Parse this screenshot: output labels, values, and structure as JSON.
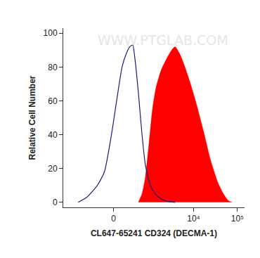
{
  "chart_data": {
    "type": "area",
    "x_label": "CL647-65241 CD324 (DECMA-1)",
    "y_label": "Relative Cell Number",
    "annotations": [
      "WWW.PTGLAB.COM"
    ],
    "xlim": [
      -2100,
      145000
    ],
    "xticks": [
      {
        "value": 0,
        "label": "0"
      },
      {
        "value": 10000,
        "label": "10⁴"
      },
      {
        "value": 100000,
        "label": "10⁵"
      }
    ],
    "ylim": [
      -3,
      103
    ],
    "yticks": [
      0,
      20,
      40,
      60,
      80,
      100
    ],
    "grid": false,
    "series": [
      {
        "type": "area",
        "color": "#ff0000",
        "x": [
          509,
          633,
          768,
          940,
          1134,
          1380,
          1800,
          2430,
          3150,
          3780,
          4770,
          5940,
          8040,
          11600,
          16800,
          24300,
          35400,
          47700,
          61800,
          74700
        ],
        "values": [
          0,
          5,
          15,
          35,
          55,
          68,
          78,
          85,
          90,
          92,
          88,
          82,
          72,
          58,
          42,
          25,
          12,
          5,
          1,
          0
        ]
      },
      {
        "type": "line",
        "color": "#1c1c80",
        "x": [
          -940,
          -576,
          -289,
          -151,
          -34,
          56,
          138,
          216,
          289,
          353,
          410,
          509,
          633,
          768,
          1011,
          1323,
          1800,
          2610,
          3780
        ],
        "values": [
          0,
          3,
          10,
          18,
          40,
          62,
          80,
          88,
          92,
          93,
          85,
          65,
          40,
          22,
          10,
          5,
          2,
          0.5,
          0
        ]
      }
    ]
  }
}
